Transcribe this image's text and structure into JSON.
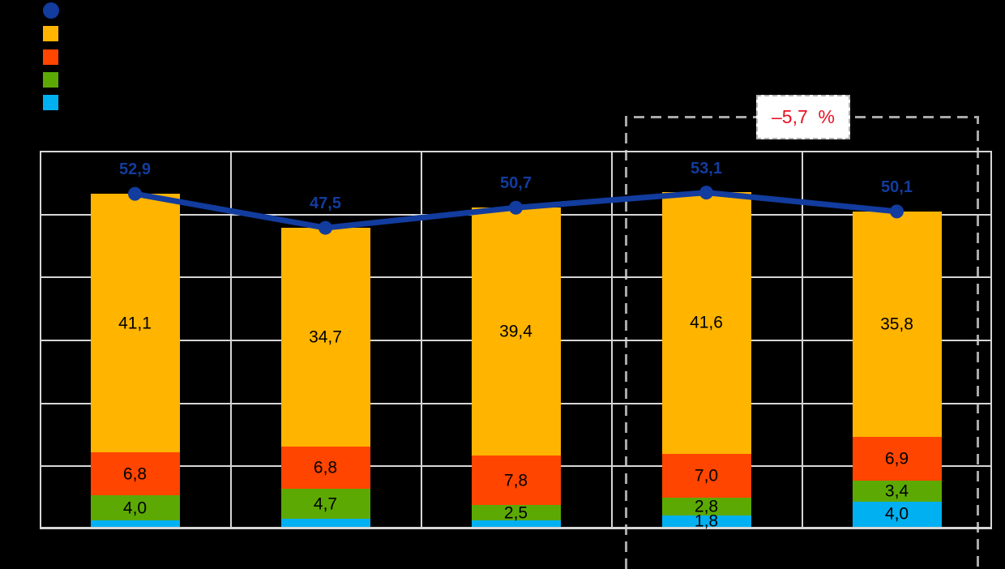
{
  "colors": {
    "background": "#000000",
    "navy": "#123C9E",
    "amber": "#FFB400",
    "orangered": "#FF4500",
    "green": "#5CA904",
    "lightblue": "#00B0F0",
    "grid": "#D6D6D6",
    "dash": "#A9A9A9",
    "annotation_red": "#E81123",
    "annotation_bg": "#FFFFFF"
  },
  "legend": {
    "items": [
      {
        "name": "total-line-marker",
        "shape": "circle",
        "color_ref": "navy"
      },
      {
        "name": "amber-series-marker",
        "shape": "square",
        "color_ref": "amber"
      },
      {
        "name": "orangered-series-marker",
        "shape": "square",
        "color_ref": "orangered"
      },
      {
        "name": "green-series-marker",
        "shape": "square",
        "color_ref": "green"
      },
      {
        "name": "lightblue-series-marker",
        "shape": "square",
        "color_ref": "lightblue"
      }
    ],
    "labels_visible": false
  },
  "annotation": {
    "text": "–5,7  %"
  },
  "chart_data": {
    "type": "bar",
    "subtype": "stacked-bars-with-total-line",
    "categories": [
      "",
      "",
      "",
      "",
      ""
    ],
    "stack_order": "bottom-to-top",
    "series": [
      {
        "name": "lightblue",
        "color_ref": "lightblue",
        "values": [
          1.0,
          1.3,
          1.0,
          1.8,
          4.0
        ],
        "labels": [
          "",
          "",
          "",
          "1,8",
          "4,0"
        ],
        "note": "first three values unlabeled in chart, estimated from bar heights"
      },
      {
        "name": "green",
        "color_ref": "green",
        "values": [
          4.0,
          4.7,
          2.5,
          2.8,
          3.4
        ],
        "labels": [
          "4,0",
          "4,7",
          "2,5",
          "2,8",
          "3,4"
        ]
      },
      {
        "name": "orangered",
        "color_ref": "orangered",
        "values": [
          6.8,
          6.8,
          7.8,
          7.0,
          6.9
        ],
        "labels": [
          "6,8",
          "6,8",
          "7,8",
          "7,0",
          "6,9"
        ]
      },
      {
        "name": "amber",
        "color_ref": "amber",
        "values": [
          41.1,
          34.7,
          39.4,
          41.6,
          35.8
        ],
        "labels": [
          "41,1",
          "34,7",
          "39,4",
          "41,6",
          "35,8"
        ]
      }
    ],
    "line": {
      "name": "total",
      "color_ref": "navy",
      "values": [
        52.9,
        47.5,
        50.7,
        53.1,
        50.1
      ],
      "labels": [
        "52,9",
        "47,5",
        "50,7",
        "53,1",
        "50,1"
      ]
    },
    "ylim": [
      0,
      60
    ],
    "gridline_step": 10,
    "grid": true,
    "legend_position": "top-left",
    "highlight_box": {
      "applies_to_categories": [
        4,
        5
      ],
      "label": "–5,7  %",
      "style": "gray-dashed-rectangle"
    }
  }
}
